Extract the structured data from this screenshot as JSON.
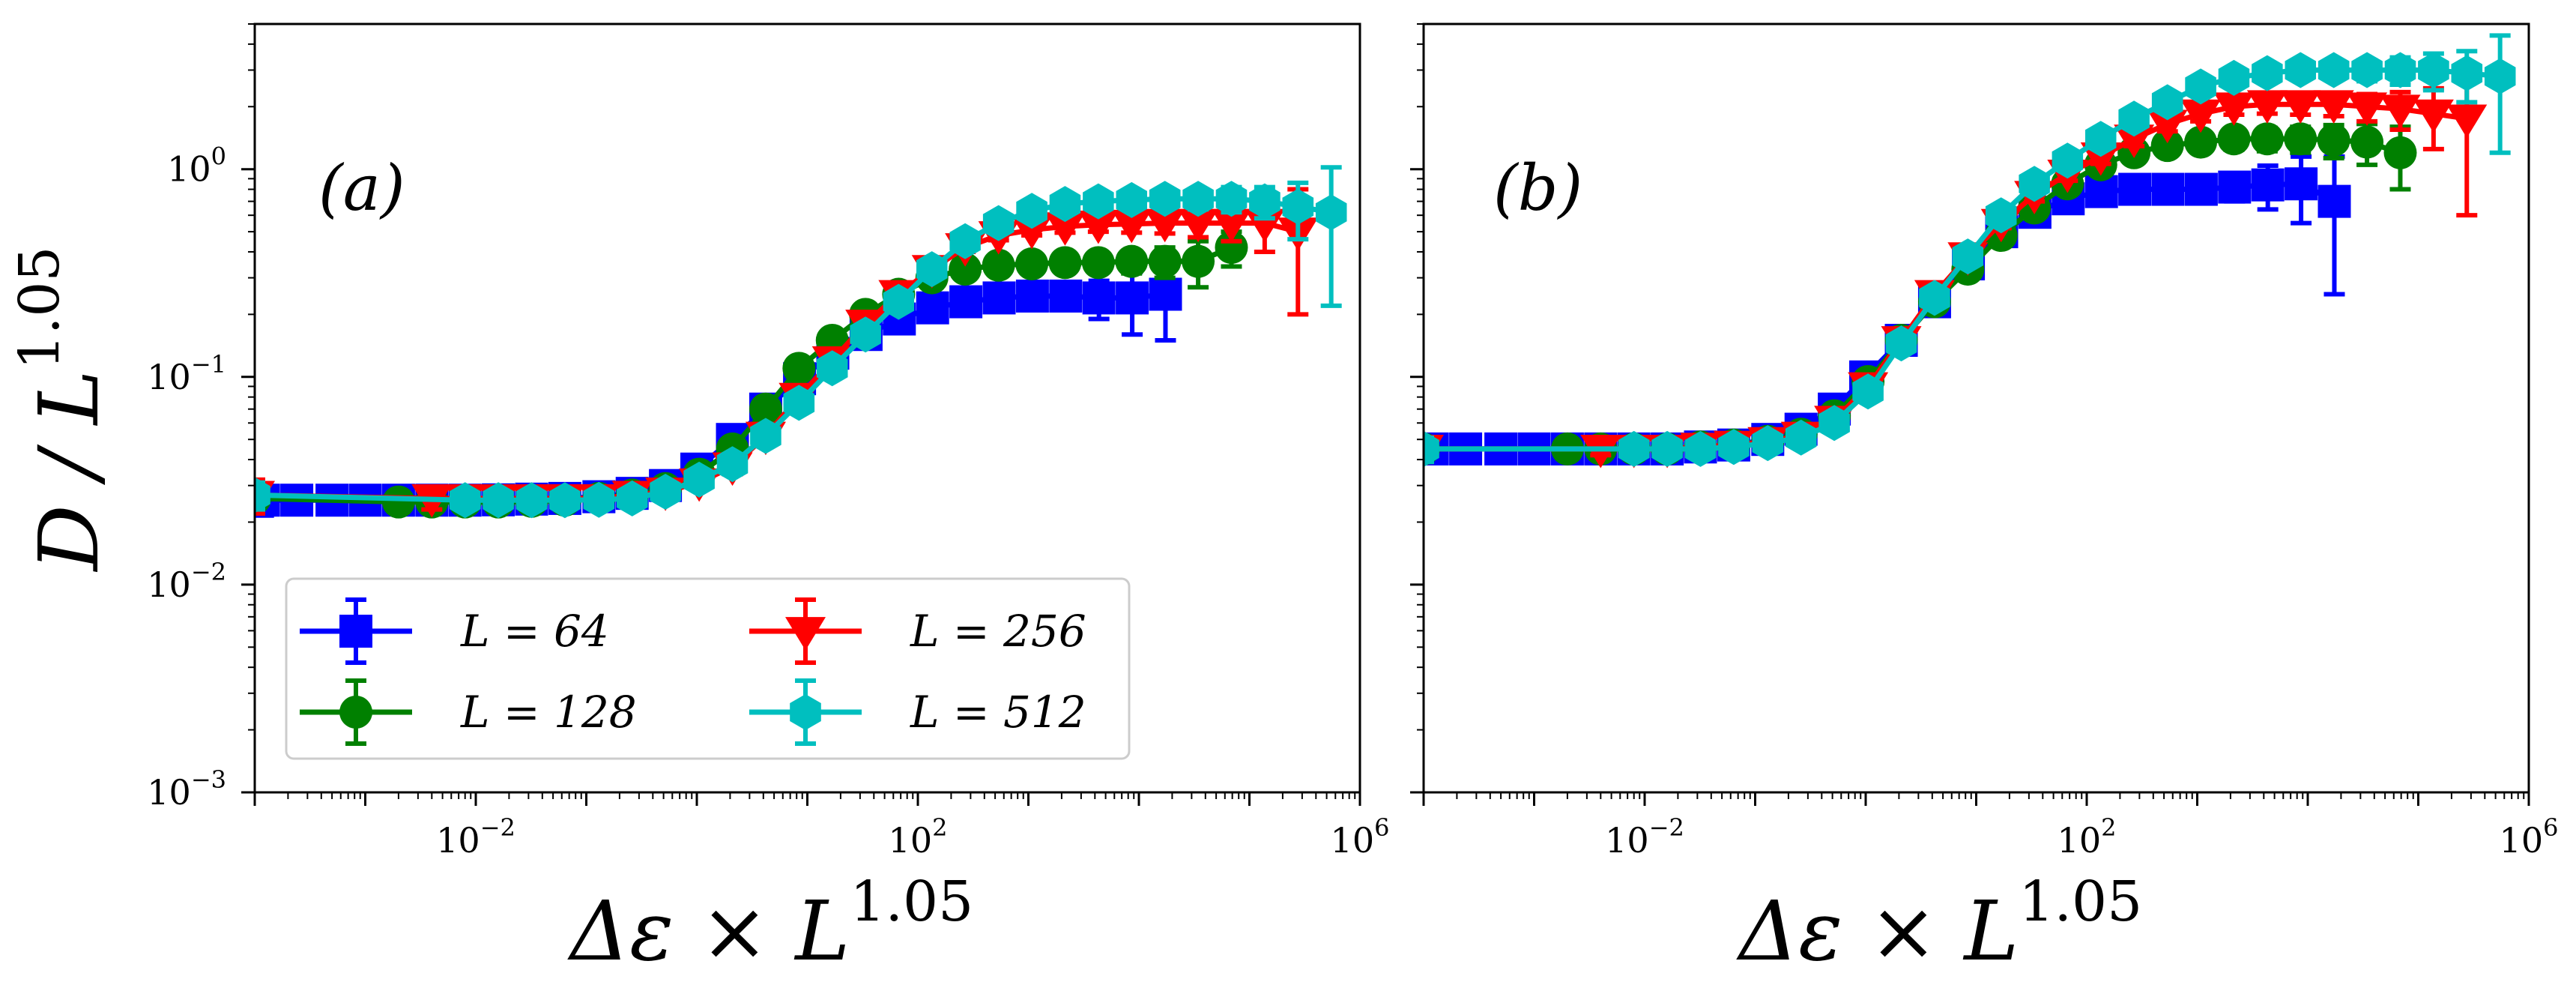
{
  "chart_data": [
    {
      "type": "line",
      "panel_label": "(a)",
      "ylabel_base": "D / L",
      "ylabel_exponent": "1.05",
      "xlabel_base": "Δε × L",
      "xlabel_exponent": "1.05",
      "x_scale": "log",
      "y_scale": "log",
      "xlim": [
        0.0001,
        1000000.0
      ],
      "ylim": [
        0.001,
        5
      ],
      "x_ticks": [
        {
          "value": 0.01,
          "base": "10",
          "exp": "−2"
        },
        {
          "value": 100,
          "base": "10",
          "exp": "2"
        },
        {
          "value": 1000000,
          "base": "10",
          "exp": "6"
        }
      ],
      "y_ticks": [
        {
          "value": 0.001,
          "base": "10",
          "exp": "−3"
        },
        {
          "value": 0.01,
          "base": "10",
          "exp": "−2"
        },
        {
          "value": 0.1,
          "base": "10",
          "exp": "−1"
        },
        {
          "value": 1,
          "base": "10",
          "exp": "0"
        }
      ],
      "legend": {
        "location": "lower-left",
        "columns": 2,
        "entries": [
          {
            "series": "L64",
            "text": "L = 64"
          },
          {
            "series": "L256",
            "text": "L = 256"
          },
          {
            "series": "L128",
            "text": "L = 128"
          },
          {
            "series": "L512",
            "text": "L = 512"
          }
        ]
      },
      "series": [
        {
          "id": "L64",
          "name": "L = 64",
          "color": "#0000ff",
          "marker": "square",
          "x": [
            0.00012,
            0.00024,
            0.0005,
            0.001,
            0.002,
            0.004,
            0.008,
            0.016,
            0.032,
            0.064,
            0.13,
            0.26,
            0.52,
            1.0,
            2.1,
            4.2,
            8.5,
            17,
            34,
            68,
            136,
            272,
            544,
            1088,
            2176,
            4350,
            8700,
            17400
          ],
          "y": [
            0.0255,
            0.0255,
            0.0255,
            0.0255,
            0.0255,
            0.0255,
            0.0255,
            0.0256,
            0.0258,
            0.026,
            0.0265,
            0.0275,
            0.03,
            0.036,
            0.05,
            0.07,
            0.098,
            0.13,
            0.16,
            0.19,
            0.215,
            0.23,
            0.24,
            0.245,
            0.245,
            0.24,
            0.24,
            0.25
          ],
          "yerr": [
            0.004,
            0.003,
            0.003,
            0.002,
            0.002,
            0.002,
            0.002,
            0.002,
            0.002,
            0.002,
            0.002,
            0.002,
            0.002,
            0.002,
            0.003,
            0.004,
            0.005,
            0.007,
            0.01,
            0.012,
            0.014,
            0.016,
            0.018,
            0.02,
            0.025,
            0.05,
            0.08,
            0.1
          ]
        },
        {
          "id": "L128",
          "name": "L = 128",
          "color": "#008000",
          "marker": "circle",
          "x": [
            0.0001,
            0.002,
            0.004,
            0.008,
            0.016,
            0.032,
            0.064,
            0.13,
            0.26,
            0.52,
            1.05,
            2.1,
            4.2,
            8.4,
            16.8,
            33.6,
            67,
            134,
            268,
            537,
            1074,
            2147,
            4295,
            8590,
            17180,
            34360,
            68720
          ],
          "y": [
            0.026,
            0.025,
            0.025,
            0.025,
            0.025,
            0.0252,
            0.0255,
            0.026,
            0.027,
            0.029,
            0.034,
            0.045,
            0.07,
            0.11,
            0.15,
            0.2,
            0.25,
            0.3,
            0.33,
            0.345,
            0.35,
            0.355,
            0.355,
            0.36,
            0.36,
            0.36,
            0.42
          ],
          "yerr": [
            0.004,
            0.002,
            0.002,
            0.002,
            0.002,
            0.002,
            0.002,
            0.002,
            0.002,
            0.002,
            0.002,
            0.003,
            0.004,
            0.006,
            0.008,
            0.01,
            0.012,
            0.015,
            0.02,
            0.025,
            0.03,
            0.03,
            0.035,
            0.045,
            0.06,
            0.09,
            0.08
          ]
        },
        {
          "id": "L256",
          "name": "L = 256",
          "color": "#ff0000",
          "marker": "triangle-down",
          "x": [
            0.0001,
            0.004,
            0.008,
            0.016,
            0.032,
            0.064,
            0.13,
            0.26,
            0.52,
            1.05,
            2.1,
            4.2,
            8.4,
            16.8,
            33.6,
            67,
            134,
            268,
            537,
            1074,
            2147,
            4295,
            8590,
            17180,
            34360,
            68720,
            137440,
            274880
          ],
          "y": [
            0.027,
            0.026,
            0.026,
            0.026,
            0.026,
            0.026,
            0.026,
            0.027,
            0.028,
            0.031,
            0.037,
            0.052,
            0.08,
            0.12,
            0.18,
            0.25,
            0.33,
            0.42,
            0.48,
            0.51,
            0.53,
            0.54,
            0.545,
            0.55,
            0.55,
            0.55,
            0.55,
            0.5
          ],
          "yerr": [
            0.005,
            0.003,
            0.003,
            0.002,
            0.002,
            0.002,
            0.002,
            0.002,
            0.002,
            0.002,
            0.003,
            0.004,
            0.005,
            0.007,
            0.01,
            0.012,
            0.015,
            0.02,
            0.025,
            0.03,
            0.035,
            0.04,
            0.05,
            0.06,
            0.08,
            0.1,
            0.15,
            0.3
          ]
        },
        {
          "id": "L512",
          "name": "L = 512",
          "color": "#00bfbf",
          "marker": "hexagon",
          "x": [
            0.0001,
            0.008,
            0.016,
            0.032,
            0.064,
            0.13,
            0.26,
            0.52,
            1.05,
            2.1,
            4.2,
            8.4,
            16.8,
            33.6,
            67,
            134,
            268,
            537,
            1074,
            2147,
            4295,
            8590,
            17180,
            34360,
            68720,
            137440,
            274880,
            549760
          ],
          "y": [
            0.027,
            0.0255,
            0.0255,
            0.0255,
            0.0255,
            0.0256,
            0.026,
            0.028,
            0.032,
            0.038,
            0.052,
            0.075,
            0.11,
            0.16,
            0.23,
            0.33,
            0.45,
            0.55,
            0.63,
            0.68,
            0.7,
            0.71,
            0.72,
            0.72,
            0.72,
            0.7,
            0.66,
            0.62
          ],
          "yerr": [
            0.004,
            0.002,
            0.002,
            0.002,
            0.002,
            0.002,
            0.002,
            0.002,
            0.002,
            0.003,
            0.004,
            0.005,
            0.007,
            0.01,
            0.015,
            0.02,
            0.025,
            0.03,
            0.035,
            0.04,
            0.05,
            0.06,
            0.07,
            0.08,
            0.1,
            0.12,
            0.2,
            0.4
          ]
        }
      ]
    },
    {
      "type": "line",
      "panel_label": "(b)",
      "xlabel_base": "Δε × L",
      "xlabel_exponent": "1.05",
      "x_scale": "log",
      "y_scale": "log",
      "xlim": [
        0.0001,
        1000000.0
      ],
      "ylim": [
        0.001,
        5
      ],
      "x_ticks": [
        {
          "value": 0.01,
          "base": "10",
          "exp": "−2"
        },
        {
          "value": 100,
          "base": "10",
          "exp": "2"
        },
        {
          "value": 1000000,
          "base": "10",
          "exp": "6"
        }
      ],
      "y_ticks_labeled": false,
      "series": [
        {
          "id": "L64",
          "name": "L = 64",
          "color": "#0000ff",
          "marker": "square",
          "x": [
            0.00012,
            0.00024,
            0.0005,
            0.001,
            0.002,
            0.004,
            0.008,
            0.016,
            0.032,
            0.064,
            0.13,
            0.26,
            0.52,
            1.0,
            2.1,
            4.2,
            8.5,
            17,
            34,
            68,
            136,
            272,
            544,
            1088,
            2176,
            4350,
            8700,
            17400
          ],
          "y": [
            0.045,
            0.045,
            0.045,
            0.045,
            0.045,
            0.045,
            0.045,
            0.045,
            0.046,
            0.047,
            0.05,
            0.056,
            0.07,
            0.1,
            0.15,
            0.23,
            0.35,
            0.5,
            0.62,
            0.72,
            0.78,
            0.8,
            0.8,
            0.8,
            0.82,
            0.84,
            0.85,
            0.7
          ],
          "yerr": [
            0.006,
            0.004,
            0.004,
            0.003,
            0.003,
            0.003,
            0.003,
            0.003,
            0.003,
            0.003,
            0.003,
            0.004,
            0.005,
            0.006,
            0.008,
            0.012,
            0.02,
            0.03,
            0.04,
            0.05,
            0.06,
            0.07,
            0.08,
            0.1,
            0.12,
            0.2,
            0.3,
            0.45
          ]
        },
        {
          "id": "L128",
          "name": "L = 128",
          "color": "#008000",
          "marker": "circle",
          "x": [
            0.0001,
            0.002,
            0.004,
            0.008,
            0.016,
            0.032,
            0.064,
            0.13,
            0.26,
            0.52,
            1.05,
            2.1,
            4.2,
            8.4,
            16.8,
            33.6,
            67,
            134,
            268,
            537,
            1074,
            2147,
            4295,
            8590,
            17180,
            34360,
            68720
          ],
          "y": [
            0.045,
            0.045,
            0.045,
            0.045,
            0.045,
            0.046,
            0.047,
            0.049,
            0.053,
            0.065,
            0.095,
            0.15,
            0.23,
            0.33,
            0.48,
            0.65,
            0.85,
            1.05,
            1.2,
            1.3,
            1.35,
            1.4,
            1.4,
            1.4,
            1.38,
            1.35,
            1.2
          ],
          "yerr": [
            0.006,
            0.004,
            0.003,
            0.003,
            0.003,
            0.003,
            0.003,
            0.003,
            0.004,
            0.005,
            0.007,
            0.01,
            0.015,
            0.02,
            0.03,
            0.05,
            0.07,
            0.09,
            0.1,
            0.12,
            0.14,
            0.16,
            0.18,
            0.2,
            0.25,
            0.3,
            0.4
          ]
        },
        {
          "id": "L256",
          "name": "L = 256",
          "color": "#ff0000",
          "marker": "triangle-down",
          "x": [
            0.0001,
            0.004,
            0.008,
            0.016,
            0.032,
            0.064,
            0.13,
            0.26,
            0.52,
            1.05,
            2.1,
            4.2,
            8.4,
            16.8,
            33.6,
            67,
            134,
            268,
            537,
            1074,
            2147,
            4295,
            8590,
            17180,
            34360,
            68720,
            137440,
            274880
          ],
          "y": [
            0.045,
            0.045,
            0.045,
            0.045,
            0.046,
            0.047,
            0.049,
            0.052,
            0.062,
            0.09,
            0.15,
            0.25,
            0.38,
            0.55,
            0.75,
            0.95,
            1.15,
            1.4,
            1.65,
            1.85,
            2.0,
            2.05,
            2.05,
            2.05,
            2.0,
            1.95,
            1.85,
            1.75
          ],
          "yerr": [
            0.006,
            0.003,
            0.003,
            0.003,
            0.003,
            0.003,
            0.003,
            0.004,
            0.005,
            0.007,
            0.01,
            0.015,
            0.02,
            0.03,
            0.05,
            0.07,
            0.09,
            0.11,
            0.13,
            0.15,
            0.17,
            0.2,
            0.22,
            0.25,
            0.3,
            0.4,
            0.6,
            1.15
          ]
        },
        {
          "id": "L512",
          "name": "L = 512",
          "color": "#00bfbf",
          "marker": "hexagon",
          "x": [
            0.0001,
            0.008,
            0.016,
            0.032,
            0.064,
            0.13,
            0.26,
            0.52,
            1.05,
            2.1,
            4.2,
            8.4,
            16.8,
            33.6,
            67,
            134,
            268,
            537,
            1074,
            2147,
            4295,
            8590,
            17180,
            34360,
            68720,
            137440,
            274880,
            549760
          ],
          "y": [
            0.045,
            0.045,
            0.045,
            0.045,
            0.046,
            0.048,
            0.051,
            0.06,
            0.085,
            0.145,
            0.24,
            0.38,
            0.6,
            0.85,
            1.1,
            1.4,
            1.75,
            2.1,
            2.5,
            2.75,
            2.9,
            3.0,
            3.0,
            3.0,
            3.0,
            3.0,
            2.9,
            2.8
          ],
          "yerr": [
            0.006,
            0.003,
            0.003,
            0.003,
            0.003,
            0.003,
            0.004,
            0.005,
            0.007,
            0.01,
            0.015,
            0.02,
            0.03,
            0.05,
            0.07,
            0.09,
            0.11,
            0.13,
            0.15,
            0.18,
            0.2,
            0.25,
            0.3,
            0.35,
            0.45,
            0.6,
            0.8,
            1.6
          ]
        }
      ]
    }
  ]
}
